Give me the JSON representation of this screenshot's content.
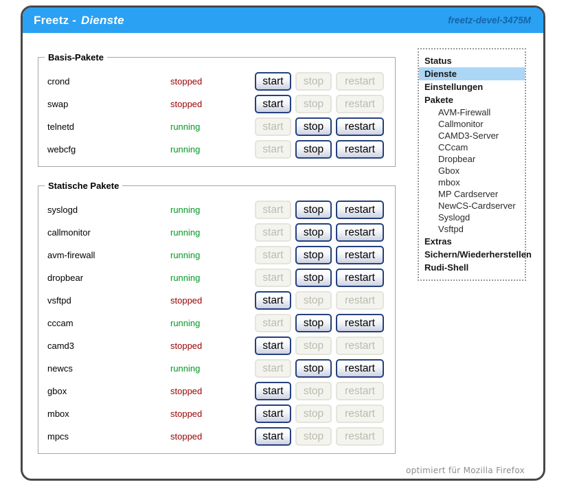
{
  "header": {
    "brand": "Freetz",
    "separator": " - ",
    "page": "Dienste",
    "version": "freetz-devel-3475M"
  },
  "buttons": {
    "start": "start",
    "stop": "stop",
    "restart": "restart"
  },
  "groups": [
    {
      "legend": "Basis-Pakete",
      "services": [
        {
          "name": "crond",
          "status": "stopped"
        },
        {
          "name": "swap",
          "status": "stopped"
        },
        {
          "name": "telnetd",
          "status": "running"
        },
        {
          "name": "webcfg",
          "status": "running"
        }
      ]
    },
    {
      "legend": "Statische Pakete",
      "services": [
        {
          "name": "syslogd",
          "status": "running"
        },
        {
          "name": "callmonitor",
          "status": "running"
        },
        {
          "name": "avm-firewall",
          "status": "running"
        },
        {
          "name": "dropbear",
          "status": "running"
        },
        {
          "name": "vsftpd",
          "status": "stopped"
        },
        {
          "name": "cccam",
          "status": "running"
        },
        {
          "name": "camd3",
          "status": "stopped"
        },
        {
          "name": "newcs",
          "status": "running"
        },
        {
          "name": "gbox",
          "status": "stopped"
        },
        {
          "name": "mbox",
          "status": "stopped"
        },
        {
          "name": "mpcs",
          "status": "stopped"
        }
      ]
    }
  ],
  "menu": {
    "items": [
      {
        "label": "Status",
        "level": 0,
        "selected": false
      },
      {
        "label": "Dienste",
        "level": 0,
        "selected": true
      },
      {
        "label": "Einstellungen",
        "level": 0,
        "selected": false
      },
      {
        "label": "Pakete",
        "level": 0,
        "selected": false
      },
      {
        "label": "AVM-Firewall",
        "level": 1,
        "selected": false
      },
      {
        "label": "Callmonitor",
        "level": 1,
        "selected": false
      },
      {
        "label": "CAMD3-Server",
        "level": 1,
        "selected": false
      },
      {
        "label": "CCcam",
        "level": 1,
        "selected": false
      },
      {
        "label": "Dropbear",
        "level": 1,
        "selected": false
      },
      {
        "label": "Gbox",
        "level": 1,
        "selected": false
      },
      {
        "label": "mbox",
        "level": 1,
        "selected": false
      },
      {
        "label": "MP Cardserver",
        "level": 1,
        "selected": false
      },
      {
        "label": "NewCS-Cardserver",
        "level": 1,
        "selected": false
      },
      {
        "label": "Syslogd",
        "level": 1,
        "selected": false
      },
      {
        "label": "Vsftpd",
        "level": 1,
        "selected": false
      },
      {
        "label": "Extras",
        "level": 0,
        "selected": false
      },
      {
        "label": "Sichern/Wiederherstellen",
        "level": 0,
        "selected": false
      },
      {
        "label": "Rudi-Shell",
        "level": 0,
        "selected": false
      }
    ]
  },
  "footer": {
    "note": "optimiert für Mozilla Firefox"
  },
  "colors": {
    "header_bg": "#2aa1f3",
    "version_text": "#1565a9",
    "running": "#009922",
    "stopped": "#990000",
    "menu_highlight": "#abd6f5",
    "enabled_button_border": "#24407c"
  }
}
